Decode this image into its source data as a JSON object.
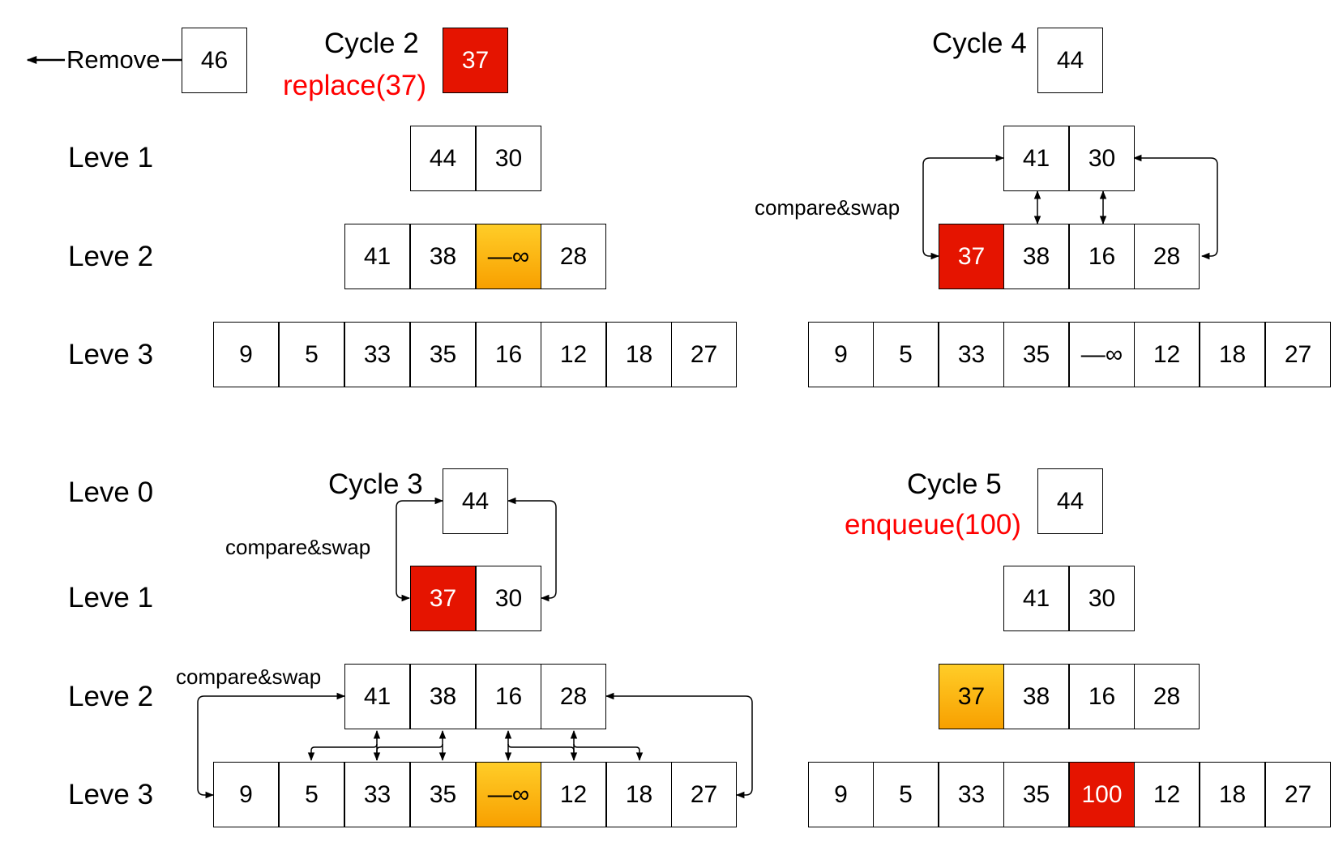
{
  "labels": {
    "remove": "Remove",
    "cycle2": "Cycle 2",
    "cycle3": "Cycle 3",
    "cycle4": "Cycle 4",
    "cycle5": "Cycle 5",
    "replace": "replace(37)",
    "enqueue": "enqueue(100)",
    "compare_swap": "compare&swap",
    "leve0": "Leve 0",
    "leve1": "Leve 1",
    "leve2": "Leve 2",
    "leve3": "Leve 3"
  },
  "cycle2": {
    "removed": "46",
    "incoming": "37",
    "level1": [
      "44",
      "30"
    ],
    "level2": [
      "41",
      "38",
      "—∞",
      "28"
    ],
    "level3": [
      "9",
      "5",
      "33",
      "35",
      "16",
      "12",
      "18",
      "27"
    ]
  },
  "cycle3": {
    "root": "44",
    "level1": [
      "37",
      "30"
    ],
    "level2": [
      "41",
      "38",
      "16",
      "28"
    ],
    "level3": [
      "9",
      "5",
      "33",
      "35",
      "—∞",
      "12",
      "18",
      "27"
    ]
  },
  "cycle4": {
    "root": "44",
    "level1": [
      "41",
      "30"
    ],
    "level2": [
      "37",
      "38",
      "16",
      "28"
    ],
    "level3": [
      "9",
      "5",
      "33",
      "35",
      "—∞",
      "12",
      "18",
      "27"
    ]
  },
  "cycle5": {
    "root": "44",
    "level1": [
      "41",
      "30"
    ],
    "level2": [
      "37",
      "38",
      "16",
      "28"
    ],
    "level3": [
      "9",
      "5",
      "33",
      "35",
      "100",
      "12",
      "18",
      "27"
    ]
  },
  "colors": {
    "highlight_red": "#e51400",
    "highlight_orange": "#f8a000",
    "label_red": "#ff0000"
  }
}
